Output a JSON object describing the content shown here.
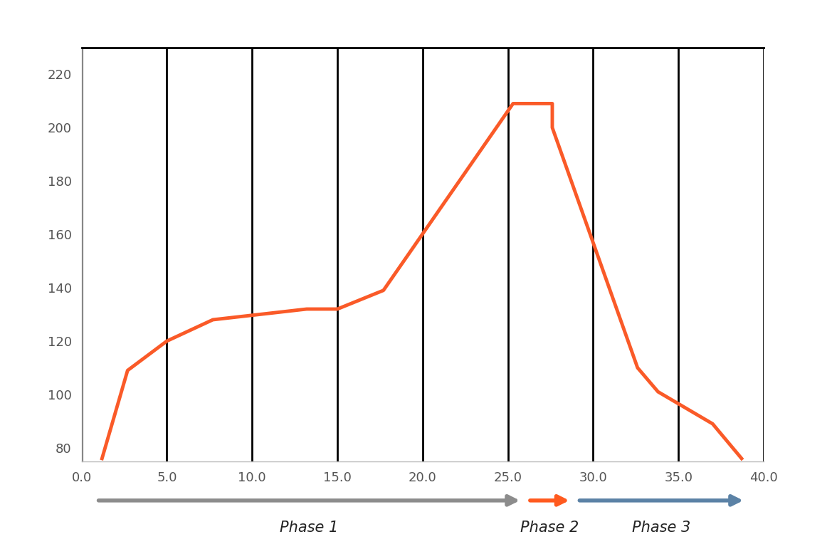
{
  "chart_data": {
    "type": "line",
    "x": [
      1.2,
      2.7,
      5.0,
      7.7,
      13.2,
      15.0,
      17.7,
      25.3,
      27.6,
      27.6,
      32.6,
      33.8,
      37.0,
      38.7
    ],
    "values": [
      76,
      109,
      120,
      128,
      132,
      132,
      139,
      209,
      209,
      200,
      110,
      101,
      89,
      76
    ],
    "color": "#fa5a28",
    "xlim": [
      0,
      40
    ],
    "xticks": [
      {
        "value": 0,
        "label": "0.0"
      },
      {
        "value": 5,
        "label": "5.0"
      },
      {
        "value": 10,
        "label": "10.0"
      },
      {
        "value": 15,
        "label": "15.0"
      },
      {
        "value": 20,
        "label": "20.0"
      },
      {
        "value": 25,
        "label": "25.0"
      },
      {
        "value": 30,
        "label": "30.0"
      },
      {
        "value": 35,
        "label": "35.0"
      },
      {
        "value": 40,
        "label": "40.0"
      }
    ],
    "ylim": [
      75,
      230
    ],
    "yticks": [
      80,
      100,
      120,
      140,
      160,
      180,
      200,
      220
    ],
    "grid": "x",
    "phases": [
      {
        "label": "Phase 1",
        "start": 1.0,
        "end": 25.7,
        "color": "#8c8c8c"
      },
      {
        "label": "Phase 2",
        "start": 26.3,
        "end": 28.6,
        "color": "#ff5a1f"
      },
      {
        "label": "Phase 3",
        "start": 29.2,
        "end": 38.8,
        "color": "#5b82a6"
      }
    ]
  }
}
